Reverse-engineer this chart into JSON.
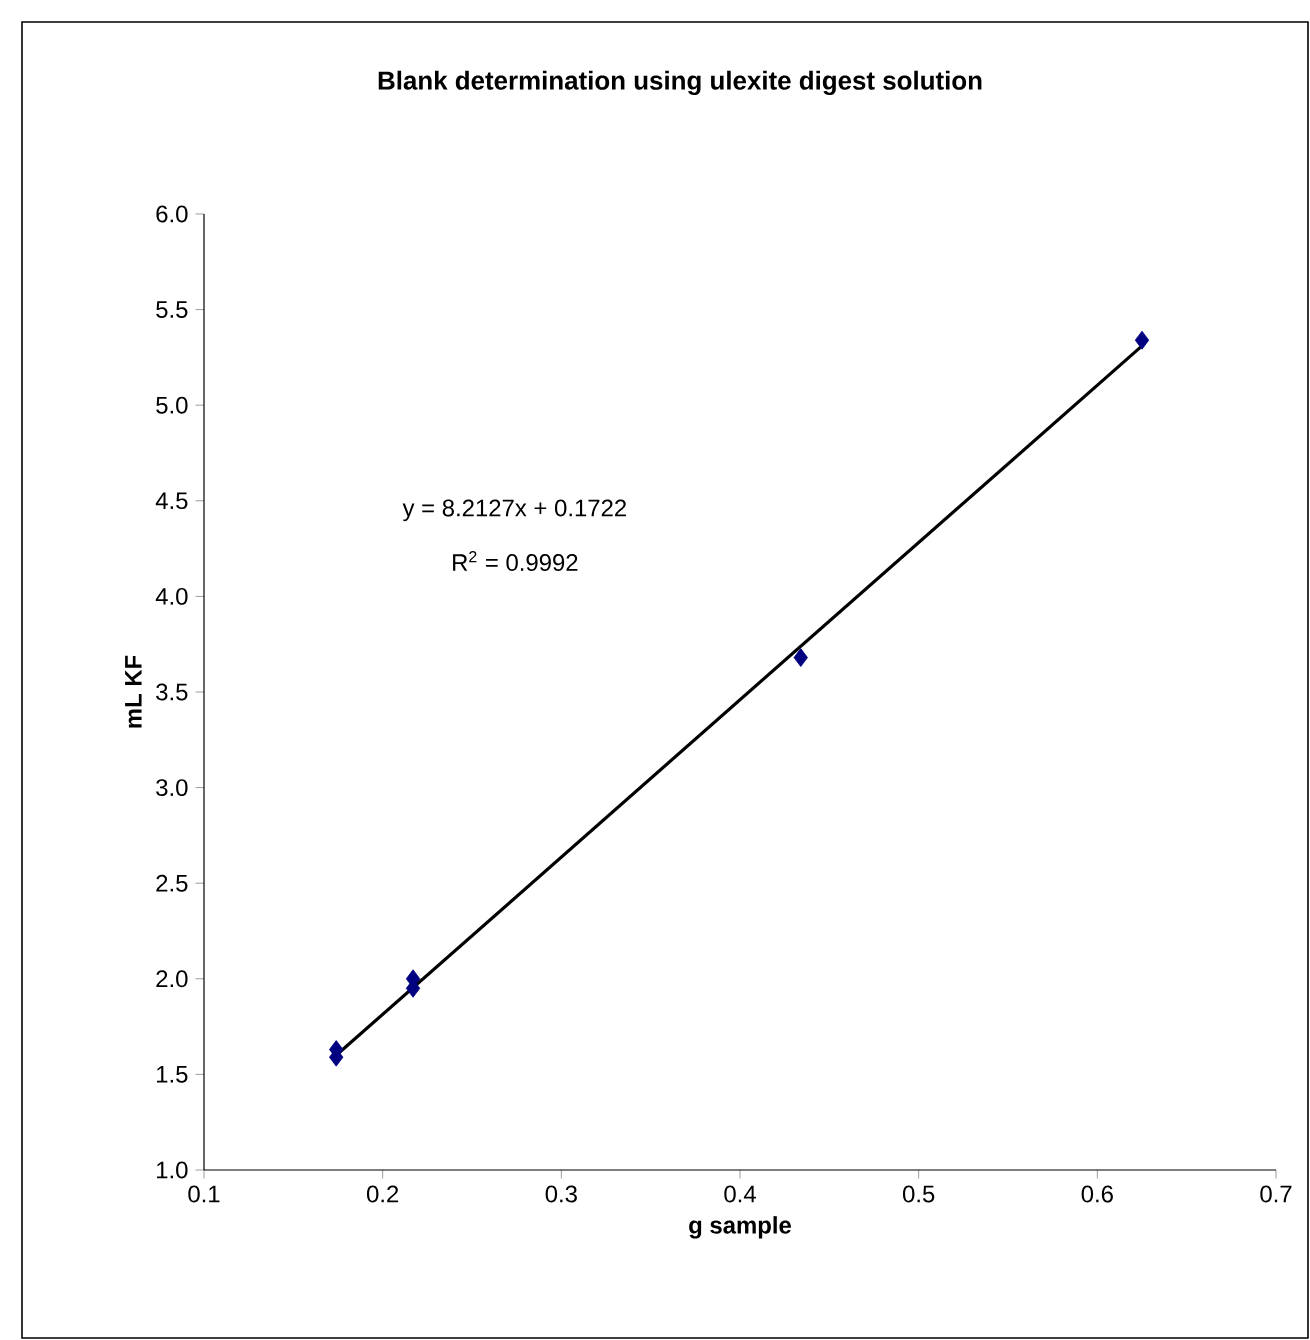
{
  "chart_data": {
    "type": "scatter",
    "title": "Blank determination using ulexite digest solution",
    "xlabel": "g sample",
    "ylabel": "mL KF",
    "series": [
      {
        "color": "#000080",
        "marker": "diamond",
        "x": [
          0.174,
          0.174,
          0.217,
          0.217,
          0.434,
          0.625
        ],
        "values": [
          1.59,
          1.63,
          1.95,
          2.0,
          3.68,
          5.34
        ]
      },
      {
        "type": "line",
        "color": "#000000",
        "marker": "none",
        "line_style": "solid",
        "x": [
          0.174,
          0.625
        ],
        "values": [
          1.6,
          5.31
        ]
      }
    ],
    "annotations": [
      "y = 8.2127x + 0.1722",
      "R$^{2}$ = 0.9992"
    ],
    "xlim": [
      0.1,
      0.7
    ],
    "xticks": [
      0.1,
      0.2,
      0.3,
      0.4,
      0.5,
      0.6,
      0.7
    ],
    "ylim": [
      1.0,
      6.0
    ],
    "yticks": [
      {
        "value": 1.0,
        "label": "1.0"
      },
      1.5,
      {
        "value": 2.0,
        "label": "2.0"
      },
      2.5,
      {
        "value": 3.0,
        "label": "3.0"
      },
      3.5,
      {
        "value": 4.0,
        "label": "4.0"
      },
      4.5,
      {
        "value": 5.0,
        "label": "5.0"
      },
      5.5,
      {
        "value": 6.0,
        "label": "6.0"
      }
    ],
    "grid": false
  }
}
